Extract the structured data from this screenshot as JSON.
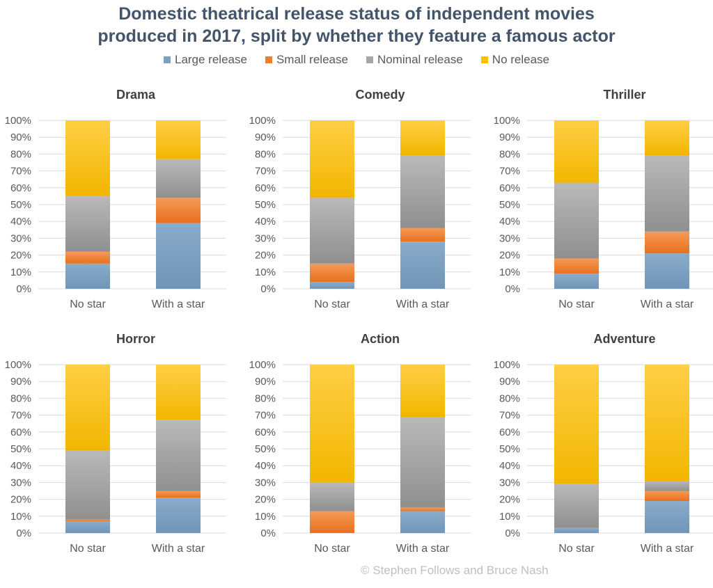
{
  "title": {
    "line1": "Domestic theatrical release status of independent movies",
    "line2": "produced in 2017, split by whether they feature a famous actor"
  },
  "legend": [
    {
      "label": "Large release",
      "color": "#7b9fc0"
    },
    {
      "label": "Small release",
      "color": "#f07c2f"
    },
    {
      "label": "Nominal release",
      "color": "#a6a6a6"
    },
    {
      "label": "No release",
      "color": "#ffc000"
    }
  ],
  "footer": "© Stephen Follows and Bruce Nash",
  "colors": {
    "large": "#7b9fc0",
    "small": "#f07c2f",
    "nominal": "#a6a6a6",
    "none": "#ffc000",
    "grid": "#d9d9d9",
    "text": "#595959",
    "title": "#44546a"
  },
  "chart_data": [
    {
      "type": "bar",
      "stacked": true,
      "title": "Drama",
      "categories": [
        "No star",
        "With a star"
      ],
      "yticks": [
        "0%",
        "10%",
        "20%",
        "30%",
        "40%",
        "50%",
        "60%",
        "70%",
        "80%",
        "90%",
        "100%"
      ],
      "ylim": [
        0,
        100
      ],
      "series": [
        {
          "name": "Large release",
          "values": [
            15,
            39
          ]
        },
        {
          "name": "Small release",
          "values": [
            7,
            15
          ]
        },
        {
          "name": "Nominal release",
          "values": [
            33,
            23
          ]
        },
        {
          "name": "No release",
          "values": [
            45,
            23
          ]
        }
      ]
    },
    {
      "type": "bar",
      "stacked": true,
      "title": "Comedy",
      "categories": [
        "No star",
        "With a star"
      ],
      "yticks": [
        "0%",
        "10%",
        "20%",
        "30%",
        "40%",
        "50%",
        "60%",
        "70%",
        "80%",
        "90%",
        "100%"
      ],
      "ylim": [
        0,
        100
      ],
      "series": [
        {
          "name": "Large release",
          "values": [
            4,
            28
          ]
        },
        {
          "name": "Small release",
          "values": [
            11,
            8
          ]
        },
        {
          "name": "Nominal release",
          "values": [
            39,
            43
          ]
        },
        {
          "name": "No release",
          "values": [
            46,
            21
          ]
        }
      ]
    },
    {
      "type": "bar",
      "stacked": true,
      "title": "Thriller",
      "categories": [
        "No star",
        "With a star"
      ],
      "yticks": [
        "0%",
        "10%",
        "20%",
        "30%",
        "40%",
        "50%",
        "60%",
        "70%",
        "80%",
        "90%",
        "100%"
      ],
      "ylim": [
        0,
        100
      ],
      "series": [
        {
          "name": "Large release",
          "values": [
            9,
            21
          ]
        },
        {
          "name": "Small release",
          "values": [
            9,
            13
          ]
        },
        {
          "name": "Nominal release",
          "values": [
            45,
            45
          ]
        },
        {
          "name": "No release",
          "values": [
            37,
            21
          ]
        }
      ]
    },
    {
      "type": "bar",
      "stacked": true,
      "title": "Horror",
      "categories": [
        "No star",
        "With a star"
      ],
      "yticks": [
        "0%",
        "10%",
        "20%",
        "30%",
        "40%",
        "50%",
        "60%",
        "70%",
        "80%",
        "90%",
        "100%"
      ],
      "ylim": [
        0,
        100
      ],
      "series": [
        {
          "name": "Large release",
          "values": [
            7,
            21
          ]
        },
        {
          "name": "Small release",
          "values": [
            1,
            4
          ]
        },
        {
          "name": "Nominal release",
          "values": [
            41,
            42
          ]
        },
        {
          "name": "No release",
          "values": [
            51,
            33
          ]
        }
      ]
    },
    {
      "type": "bar",
      "stacked": true,
      "title": "Action",
      "categories": [
        "No star",
        "With a star"
      ],
      "yticks": [
        "0%",
        "10%",
        "20%",
        "30%",
        "40%",
        "50%",
        "60%",
        "70%",
        "80%",
        "90%",
        "100%"
      ],
      "ylim": [
        0,
        100
      ],
      "series": [
        {
          "name": "Large release",
          "values": [
            0,
            13
          ]
        },
        {
          "name": "Small release",
          "values": [
            13,
            2
          ]
        },
        {
          "name": "Nominal release",
          "values": [
            17,
            54
          ]
        },
        {
          "name": "No release",
          "values": [
            70,
            31
          ]
        }
      ]
    },
    {
      "type": "bar",
      "stacked": true,
      "title": "Adventure",
      "categories": [
        "No star",
        "With a star"
      ],
      "yticks": [
        "0%",
        "10%",
        "20%",
        "30%",
        "40%",
        "50%",
        "60%",
        "70%",
        "80%",
        "90%",
        "100%"
      ],
      "ylim": [
        0,
        100
      ],
      "series": [
        {
          "name": "Large release",
          "values": [
            3,
            19
          ]
        },
        {
          "name": "Small release",
          "values": [
            0,
            6
          ]
        },
        {
          "name": "Nominal release",
          "values": [
            26,
            6
          ]
        },
        {
          "name": "No release",
          "values": [
            71,
            69
          ]
        }
      ]
    }
  ]
}
